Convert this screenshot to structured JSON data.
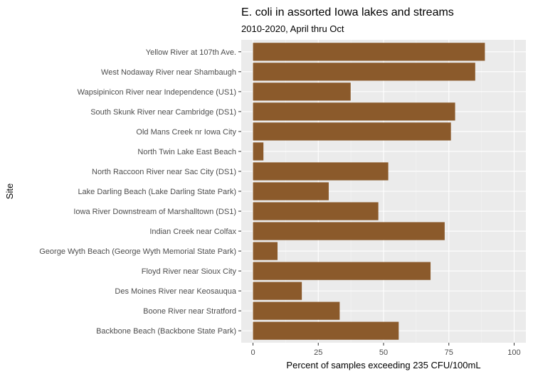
{
  "chart_data": {
    "type": "bar",
    "orientation": "horizontal",
    "title": "E. coli in assorted Iowa lakes and streams",
    "subtitle": "2010-2020, April thru Oct",
    "xlabel": "Percent of samples exceeding 235 CFU/100mL",
    "ylabel": "Site",
    "xlim": [
      0,
      100
    ],
    "xticks": [
      0,
      25,
      50,
      75,
      100
    ],
    "grid": true,
    "legend": "none",
    "colors": {
      "bar": "#8B5A2B",
      "panel": "#EBEBEB",
      "grid_major": "#FFFFFF",
      "grid_minor": "#F5F5F5"
    },
    "categories": [
      "Backbone Beach (Backbone State Park)",
      "Boone River near Stratford",
      "Des Moines River near Keosauqua",
      "Floyd River near Sioux City",
      "George Wyth Beach (George Wyth Memorial State Park)",
      "Indian Creek near Colfax",
      "Iowa River Downstream of Marshalltown (DS1)",
      "Lake Darling Beach (Lake Darling State Park)",
      "North Raccoon River near Sac City (DS1)",
      "North Twin Lake East Beach",
      "Old Mans Creek nr Iowa City",
      "South Skunk River near Cambridge (DS1)",
      "Wapsipinicon River near Independence (US1)",
      "West Nodaway River near Shambaugh",
      "Yellow River at 107th Ave."
    ],
    "values": [
      55.8,
      33.2,
      18.7,
      68,
      9.4,
      73.4,
      48,
      29,
      51.8,
      4,
      75.8,
      77.4,
      37.4,
      85.1,
      88.8
    ]
  }
}
